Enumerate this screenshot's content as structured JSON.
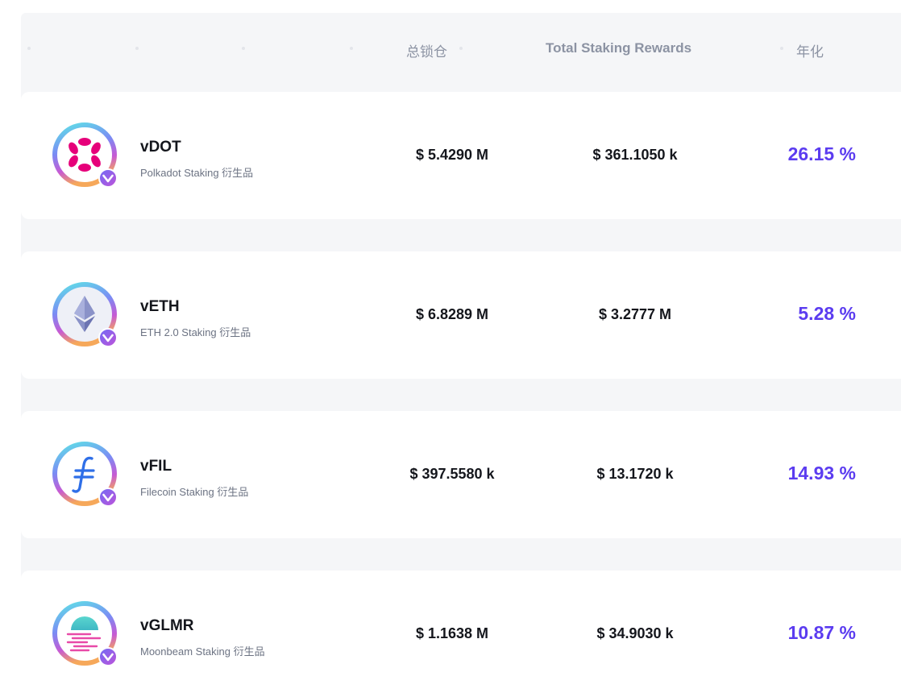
{
  "header": {
    "tvl": "总锁仓",
    "rewards": "Total Staking Rewards",
    "apy": "年化"
  },
  "colors": {
    "apy": "#5b3cf0",
    "ring_gradient": [
      "#5cdfe8",
      "#6b8cf5",
      "#c35bd8",
      "#f4a25c"
    ],
    "badge": "#7a5cf2"
  },
  "rows": [
    {
      "name": "vDOT",
      "desc": "Polkadot Staking 衍生品",
      "tvl": "$ 5.4290 M",
      "rewards": "$ 361.1050 k",
      "apy": "26.15 %",
      "icon": "polkadot-icon"
    },
    {
      "name": "vETH",
      "desc": "ETH 2.0 Staking 衍生品",
      "tvl": "$ 6.8289 M",
      "rewards": "$ 3.2777 M",
      "apy": "5.28 %",
      "icon": "ethereum-icon"
    },
    {
      "name": "vFIL",
      "desc": "Filecoin Staking 衍生品",
      "tvl": "$ 397.5580 k",
      "rewards": "$ 13.1720 k",
      "apy": "14.93 %",
      "icon": "filecoin-icon"
    },
    {
      "name": "vGLMR",
      "desc": "Moonbeam Staking 衍生品",
      "tvl": "$ 1.1638 M",
      "rewards": "$ 34.9030 k",
      "apy": "10.87 %",
      "icon": "moonbeam-icon"
    }
  ]
}
